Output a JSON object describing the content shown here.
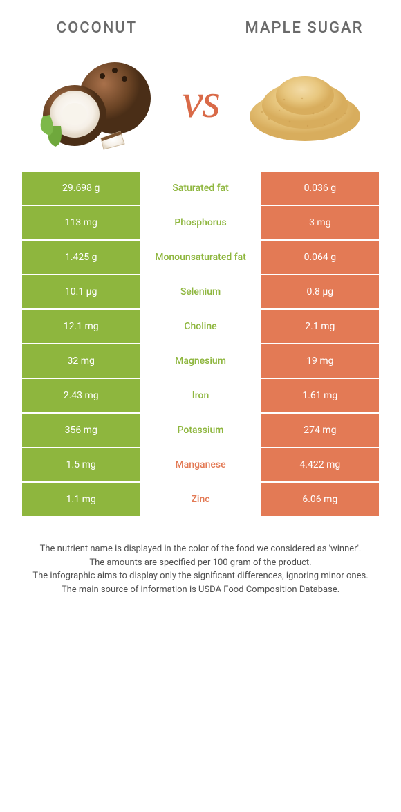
{
  "colors": {
    "leftFood": "#8eb63e",
    "rightFood": "#e37a55",
    "midBg": "#ffffff",
    "vsText": "#d96a48",
    "titleText": "#6a6a6a",
    "footText": "#505050"
  },
  "header": {
    "leftTitle": "Coconut",
    "rightTitle": "Maple sugar",
    "vs": "vs"
  },
  "rows": [
    {
      "label": "Saturated fat",
      "left": "29.698 g",
      "right": "0.036 g",
      "winner": "left"
    },
    {
      "label": "Phosphorus",
      "left": "113 mg",
      "right": "3 mg",
      "winner": "left"
    },
    {
      "label": "Monounsaturated fat",
      "left": "1.425 g",
      "right": "0.064 g",
      "winner": "left"
    },
    {
      "label": "Selenium",
      "left": "10.1 µg",
      "right": "0.8 µg",
      "winner": "left"
    },
    {
      "label": "Choline",
      "left": "12.1 mg",
      "right": "2.1 mg",
      "winner": "left"
    },
    {
      "label": "Magnesium",
      "left": "32 mg",
      "right": "19 mg",
      "winner": "left"
    },
    {
      "label": "Iron",
      "left": "2.43 mg",
      "right": "1.61 mg",
      "winner": "left"
    },
    {
      "label": "Potassium",
      "left": "356 mg",
      "right": "274 mg",
      "winner": "left"
    },
    {
      "label": "Manganese",
      "left": "1.5 mg",
      "right": "4.422 mg",
      "winner": "right"
    },
    {
      "label": "Zinc",
      "left": "1.1 mg",
      "right": "6.06 mg",
      "winner": "right"
    }
  ],
  "footnote": [
    "The nutrient name is displayed in the color of the food we considered as 'winner'.",
    "The amounts are specified per 100 gram of the product.",
    "The infographic aims to display only the significant differences, ignoring minor ones.",
    "The main source of information is USDA Food Composition Database."
  ]
}
